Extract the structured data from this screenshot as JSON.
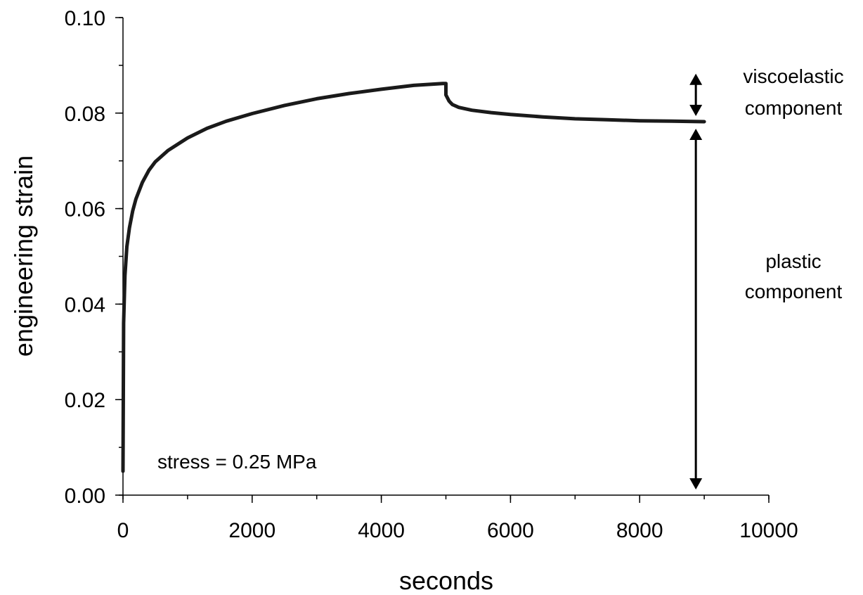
{
  "chart_data": {
    "type": "line",
    "title": "",
    "xlabel": "seconds",
    "ylabel": "engineering strain",
    "xlim": [
      0,
      10000
    ],
    "ylim": [
      0,
      0.1
    ],
    "x_ticks": [
      0,
      2000,
      4000,
      6000,
      8000,
      10000
    ],
    "x_tick_labels": [
      "0",
      "2000",
      "4000",
      "6000",
      "8000",
      "10000"
    ],
    "y_ticks": [
      0,
      0.02,
      0.04,
      0.06,
      0.08,
      0.1
    ],
    "y_tick_labels": [
      "0.00",
      "0.02",
      "0.04",
      "0.06",
      "0.08",
      "0.10"
    ],
    "x_minor_step": 1000,
    "y_minor_step": 0.01,
    "grid": false,
    "series": [
      {
        "x": [
          0,
          10,
          30,
          60,
          100,
          150,
          200,
          300,
          400,
          500,
          700,
          1000,
          1300,
          1600,
          2000,
          2500,
          3000,
          3500,
          4000,
          4500,
          4950,
          5000,
          5000,
          5050,
          5100,
          5200,
          5400,
          5700,
          6000,
          6500,
          7000,
          7500,
          8000,
          8500,
          9000
        ],
        "y": [
          0.005,
          0.036,
          0.046,
          0.052,
          0.056,
          0.0595,
          0.062,
          0.0655,
          0.068,
          0.0698,
          0.0722,
          0.0748,
          0.0768,
          0.0783,
          0.0799,
          0.0816,
          0.083,
          0.0841,
          0.085,
          0.0858,
          0.0862,
          0.0862,
          0.0838,
          0.0825,
          0.0818,
          0.0812,
          0.0806,
          0.0801,
          0.0797,
          0.0792,
          0.0788,
          0.0786,
          0.0784,
          0.0783,
          0.0782
        ]
      }
    ],
    "annotations": {
      "stress_label": "stress = 0.25 MPa",
      "viscoelastic_label": [
        "viscoelastic",
        "component"
      ],
      "plastic_label": [
        "plastic",
        "component"
      ]
    },
    "arrows": {
      "x": 8870,
      "viscoelastic_range": [
        0.0782,
        0.0862
      ],
      "plastic_range": [
        0.0,
        0.0782
      ]
    }
  }
}
